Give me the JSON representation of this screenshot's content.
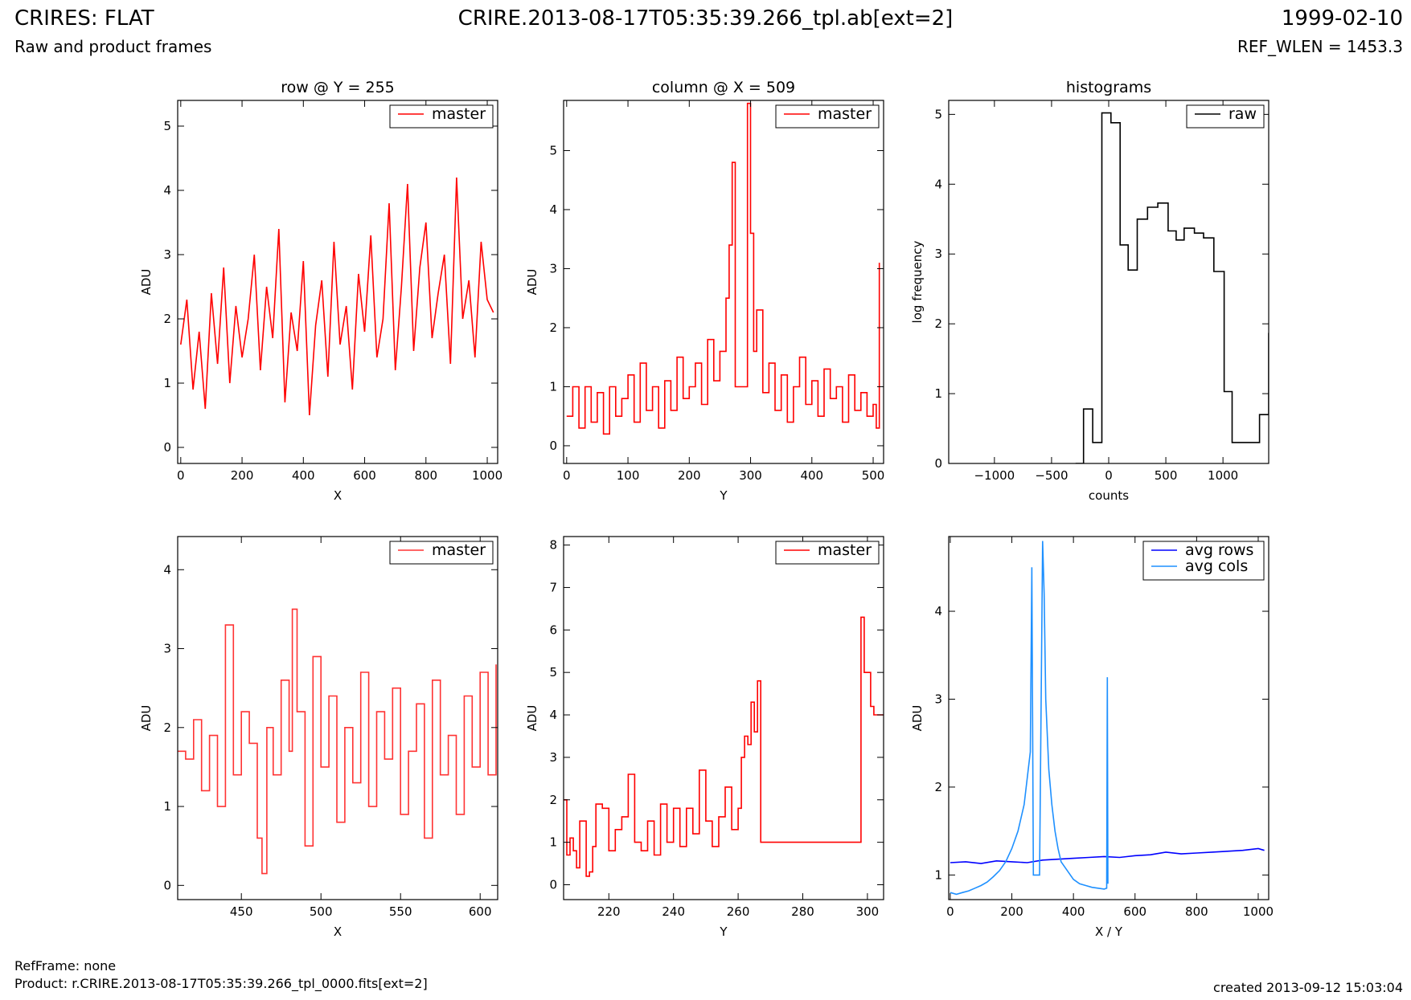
{
  "header": {
    "title_left": "CRIRES: FLAT",
    "subtitle_left": "Raw and product frames",
    "title_center": "CRIRE.2013-08-17T05:35:39.266_tpl.ab[ext=2]",
    "title_right": "1999-02-10",
    "subtitle_right": "REF_WLEN = 1453.3"
  },
  "footer": {
    "ref_frame": "RefFrame: none",
    "product": "Product: r.CRIRE.2013-08-17T05:35:39.266_tpl_0000.fits[ext=2]",
    "created": "created 2013-09-12 15:03:04"
  },
  "colors": {
    "master": "#ff0000",
    "master_zoom": "#ff3333",
    "raw": "#000000",
    "avg_rows": "#0000ff",
    "avg_cols": "#1e90ff"
  },
  "chart_data": [
    {
      "id": "row-plot",
      "type": "line",
      "title": "row @ Y = 255",
      "xlabel": "X",
      "ylabel": "ADU",
      "xlim": [
        -10,
        1034
      ],
      "ylim": [
        -0.25,
        5.4
      ],
      "xticks": [
        0,
        200,
        400,
        600,
        800,
        1000
      ],
      "yticks": [
        0,
        1,
        2,
        3,
        4,
        5
      ],
      "legend": "top-right",
      "series": [
        {
          "name": "master",
          "color": "#ff0000",
          "step": false,
          "x": [
            0,
            20,
            40,
            60,
            80,
            100,
            120,
            140,
            160,
            180,
            200,
            220,
            240,
            260,
            280,
            300,
            320,
            340,
            360,
            380,
            400,
            420,
            440,
            460,
            480,
            500,
            520,
            540,
            560,
            580,
            600,
            620,
            640,
            660,
            680,
            700,
            720,
            740,
            760,
            780,
            800,
            820,
            840,
            860,
            880,
            900,
            920,
            940,
            960,
            980,
            1000,
            1020
          ],
          "values": [
            1.6,
            2.3,
            0.9,
            1.8,
            0.6,
            2.4,
            1.3,
            2.8,
            1.0,
            2.2,
            1.4,
            2.0,
            3.0,
            1.2,
            2.5,
            1.7,
            3.4,
            0.7,
            2.1,
            1.5,
            2.9,
            0.5,
            1.9,
            2.6,
            1.1,
            3.2,
            1.6,
            2.2,
            0.9,
            2.7,
            1.8,
            3.3,
            1.4,
            2.0,
            3.8,
            1.2,
            2.5,
            4.1,
            1.5,
            2.8,
            3.5,
            1.7,
            2.4,
            3.0,
            1.3,
            4.2,
            2.0,
            2.6,
            1.4,
            3.2,
            2.3,
            2.1
          ]
        }
      ]
    },
    {
      "id": "column-plot",
      "type": "line",
      "title": "column @ X = 509",
      "xlabel": "Y",
      "ylabel": "ADU",
      "xlim": [
        -5,
        517
      ],
      "ylim": [
        -0.3,
        5.85
      ],
      "xticks": [
        0,
        100,
        200,
        300,
        400,
        500
      ],
      "yticks": [
        0,
        1,
        2,
        3,
        4,
        5
      ],
      "legend": "top-right",
      "series": [
        {
          "name": "master",
          "color": "#ff0000",
          "step": true,
          "x": [
            0,
            10,
            20,
            30,
            40,
            50,
            60,
            70,
            80,
            90,
            100,
            110,
            120,
            130,
            140,
            150,
            160,
            170,
            180,
            190,
            200,
            210,
            220,
            230,
            240,
            250,
            260,
            265,
            270,
            275,
            290,
            295,
            300,
            305,
            310,
            320,
            330,
            340,
            350,
            360,
            370,
            380,
            390,
            400,
            410,
            420,
            430,
            440,
            450,
            460,
            470,
            480,
            490,
            500,
            505,
            510
          ],
          "values": [
            0.5,
            1.0,
            0.3,
            1.0,
            0.4,
            0.9,
            0.2,
            1.0,
            0.5,
            0.8,
            1.2,
            0.4,
            1.4,
            0.6,
            1.0,
            0.3,
            1.1,
            0.6,
            1.5,
            0.8,
            1.0,
            1.4,
            0.7,
            1.8,
            1.1,
            1.6,
            2.5,
            3.4,
            4.8,
            1.0,
            1.0,
            5.8,
            3.6,
            1.6,
            2.3,
            0.9,
            1.4,
            0.6,
            1.2,
            0.4,
            1.0,
            1.5,
            0.7,
            1.1,
            0.5,
            1.3,
            0.8,
            1.0,
            0.4,
            1.2,
            0.6,
            0.9,
            0.5,
            0.7,
            0.3,
            3.1
          ]
        }
      ]
    },
    {
      "id": "histogram-plot",
      "type": "line",
      "title": "histograms",
      "xlabel": "counts",
      "ylabel": "log frequency",
      "xlim": [
        -1400,
        1400
      ],
      "ylim": [
        0,
        5.2
      ],
      "xticks": [
        -1000,
        -500,
        0,
        500,
        1000
      ],
      "yticks": [
        0,
        1,
        2,
        3,
        4,
        5
      ],
      "legend": "top-right",
      "series": [
        {
          "name": "raw",
          "color": "#000000",
          "step": true,
          "x": [
            -290,
            -220,
            -140,
            -60,
            20,
            100,
            170,
            250,
            340,
            430,
            520,
            590,
            660,
            750,
            830,
            920,
            1010,
            1080,
            1160,
            1240,
            1320,
            1400
          ],
          "values": [
            0.0,
            0.78,
            0.3,
            5.02,
            4.88,
            3.13,
            2.77,
            3.5,
            3.67,
            3.73,
            3.33,
            3.2,
            3.37,
            3.3,
            3.23,
            2.75,
            1.03,
            0.3,
            0.3,
            0.3,
            0.7,
            1.87
          ]
        }
      ]
    },
    {
      "id": "row-zoom-plot",
      "type": "line",
      "title": "",
      "xlabel": "X",
      "ylabel": "ADU",
      "xlim": [
        410,
        611
      ],
      "ylim": [
        -0.18,
        4.42
      ],
      "xticks": [
        450,
        500,
        550,
        600
      ],
      "yticks": [
        0,
        1,
        2,
        3,
        4
      ],
      "legend": "top-right",
      "series": [
        {
          "name": "master",
          "color": "#ff3333",
          "step": true,
          "x": [
            410,
            415,
            420,
            425,
            430,
            435,
            440,
            445,
            450,
            455,
            460,
            463,
            466,
            470,
            475,
            480,
            482,
            485,
            490,
            495,
            500,
            505,
            510,
            515,
            520,
            525,
            530,
            535,
            540,
            545,
            550,
            555,
            560,
            565,
            570,
            575,
            580,
            585,
            590,
            595,
            600,
            605,
            610
          ],
          "values": [
            1.7,
            1.6,
            2.1,
            1.2,
            1.9,
            1.0,
            3.3,
            1.4,
            2.2,
            1.8,
            0.6,
            0.15,
            2.0,
            1.4,
            2.6,
            1.7,
            3.5,
            2.2,
            0.5,
            2.9,
            1.5,
            2.4,
            0.8,
            2.0,
            1.3,
            2.7,
            1.0,
            2.2,
            1.6,
            2.5,
            0.9,
            1.7,
            2.3,
            0.6,
            2.6,
            1.4,
            1.9,
            0.9,
            2.4,
            1.5,
            2.7,
            1.4,
            2.8
          ]
        }
      ]
    },
    {
      "id": "column-zoom-plot",
      "type": "line",
      "title": "",
      "xlabel": "Y",
      "ylabel": "ADU",
      "xlim": [
        206,
        305
      ],
      "ylim": [
        -0.35,
        8.2
      ],
      "xticks": [
        220,
        240,
        260,
        280,
        300
      ],
      "yticks": [
        0,
        1,
        2,
        3,
        4,
        5,
        6,
        7,
        8
      ],
      "legend": "top-right",
      "series": [
        {
          "name": "master",
          "color": "#ff0000",
          "step": true,
          "x": [
            206,
            207,
            208,
            209,
            210,
            211,
            212,
            213,
            214,
            215,
            216,
            218,
            220,
            222,
            224,
            226,
            228,
            230,
            232,
            234,
            236,
            238,
            240,
            242,
            244,
            246,
            248,
            250,
            252,
            254,
            256,
            258,
            260,
            261,
            262,
            263,
            264,
            265,
            266,
            267,
            298,
            299,
            300,
            301,
            302,
            303,
            304,
            305
          ],
          "values": [
            2.0,
            0.7,
            1.1,
            0.8,
            0.4,
            1.5,
            1.5,
            0.2,
            0.3,
            0.9,
            1.9,
            1.8,
            0.8,
            1.3,
            1.6,
            2.6,
            1.0,
            0.8,
            1.5,
            0.7,
            1.9,
            1.0,
            1.8,
            0.9,
            1.8,
            1.2,
            2.7,
            1.5,
            0.9,
            1.6,
            2.3,
            1.3,
            1.8,
            3.0,
            3.5,
            3.3,
            4.3,
            3.6,
            4.8,
            1.0,
            6.3,
            5.0,
            5.0,
            4.2,
            4.0,
            4.0,
            4.0,
            4.0
          ]
        }
      ]
    },
    {
      "id": "avg-plot",
      "type": "line",
      "title": "",
      "xlabel": "X / Y",
      "ylabel": "ADU",
      "xlim": [
        -5,
        1034
      ],
      "ylim": [
        0.72,
        4.85
      ],
      "xticks": [
        0,
        200,
        400,
        600,
        800,
        1000
      ],
      "yticks": [
        1,
        2,
        3,
        4
      ],
      "legend": "top-right",
      "series": [
        {
          "name": "avg rows",
          "color": "#0000ff",
          "step": false,
          "x": [
            0,
            50,
            100,
            150,
            200,
            250,
            300,
            350,
            400,
            450,
            500,
            550,
            600,
            650,
            700,
            750,
            800,
            850,
            900,
            950,
            1000,
            1020
          ],
          "values": [
            1.14,
            1.15,
            1.13,
            1.16,
            1.15,
            1.14,
            1.17,
            1.18,
            1.19,
            1.2,
            1.21,
            1.2,
            1.22,
            1.23,
            1.26,
            1.24,
            1.25,
            1.26,
            1.27,
            1.28,
            1.3,
            1.28
          ]
        },
        {
          "name": "avg cols",
          "color": "#1e90ff",
          "step": false,
          "x": [
            0,
            20,
            40,
            60,
            80,
            100,
            120,
            140,
            160,
            180,
            200,
            220,
            240,
            260,
            265,
            270,
            280,
            290,
            300,
            305,
            310,
            320,
            330,
            340,
            350,
            360,
            380,
            400,
            420,
            440,
            460,
            480,
            500,
            508,
            510,
            512
          ],
          "values": [
            0.8,
            0.78,
            0.8,
            0.82,
            0.85,
            0.88,
            0.92,
            0.98,
            1.05,
            1.15,
            1.3,
            1.5,
            1.8,
            2.4,
            4.5,
            1.0,
            1.0,
            1.0,
            4.8,
            4.2,
            3.0,
            2.2,
            1.8,
            1.5,
            1.3,
            1.15,
            1.05,
            0.95,
            0.9,
            0.88,
            0.86,
            0.85,
            0.84,
            0.85,
            3.25,
            0.9
          ]
        }
      ]
    }
  ]
}
